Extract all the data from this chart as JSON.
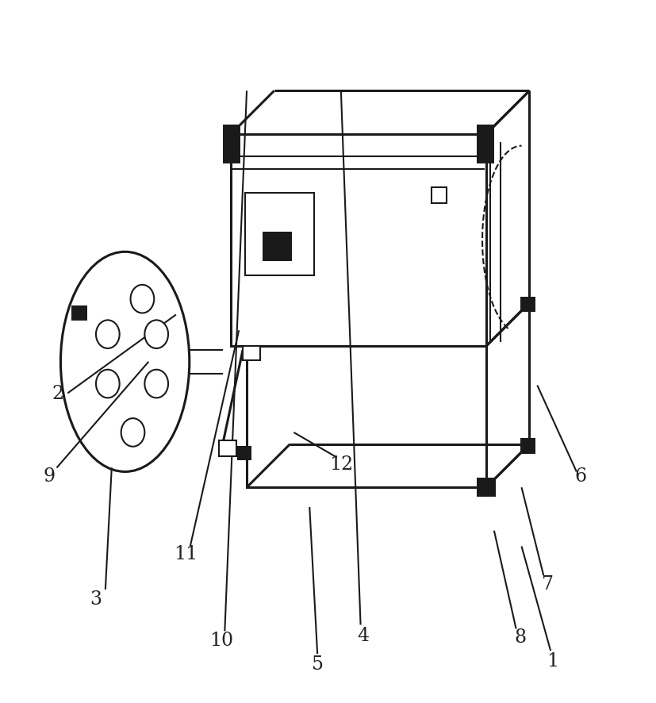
{
  "bg_color": "#ffffff",
  "line_color": "#1a1a1a",
  "lw_main": 2.2,
  "lw_thin": 1.5,
  "fig_w": 8.28,
  "fig_h": 8.87,
  "label_fontsize": 17,
  "label_color": "#222222"
}
